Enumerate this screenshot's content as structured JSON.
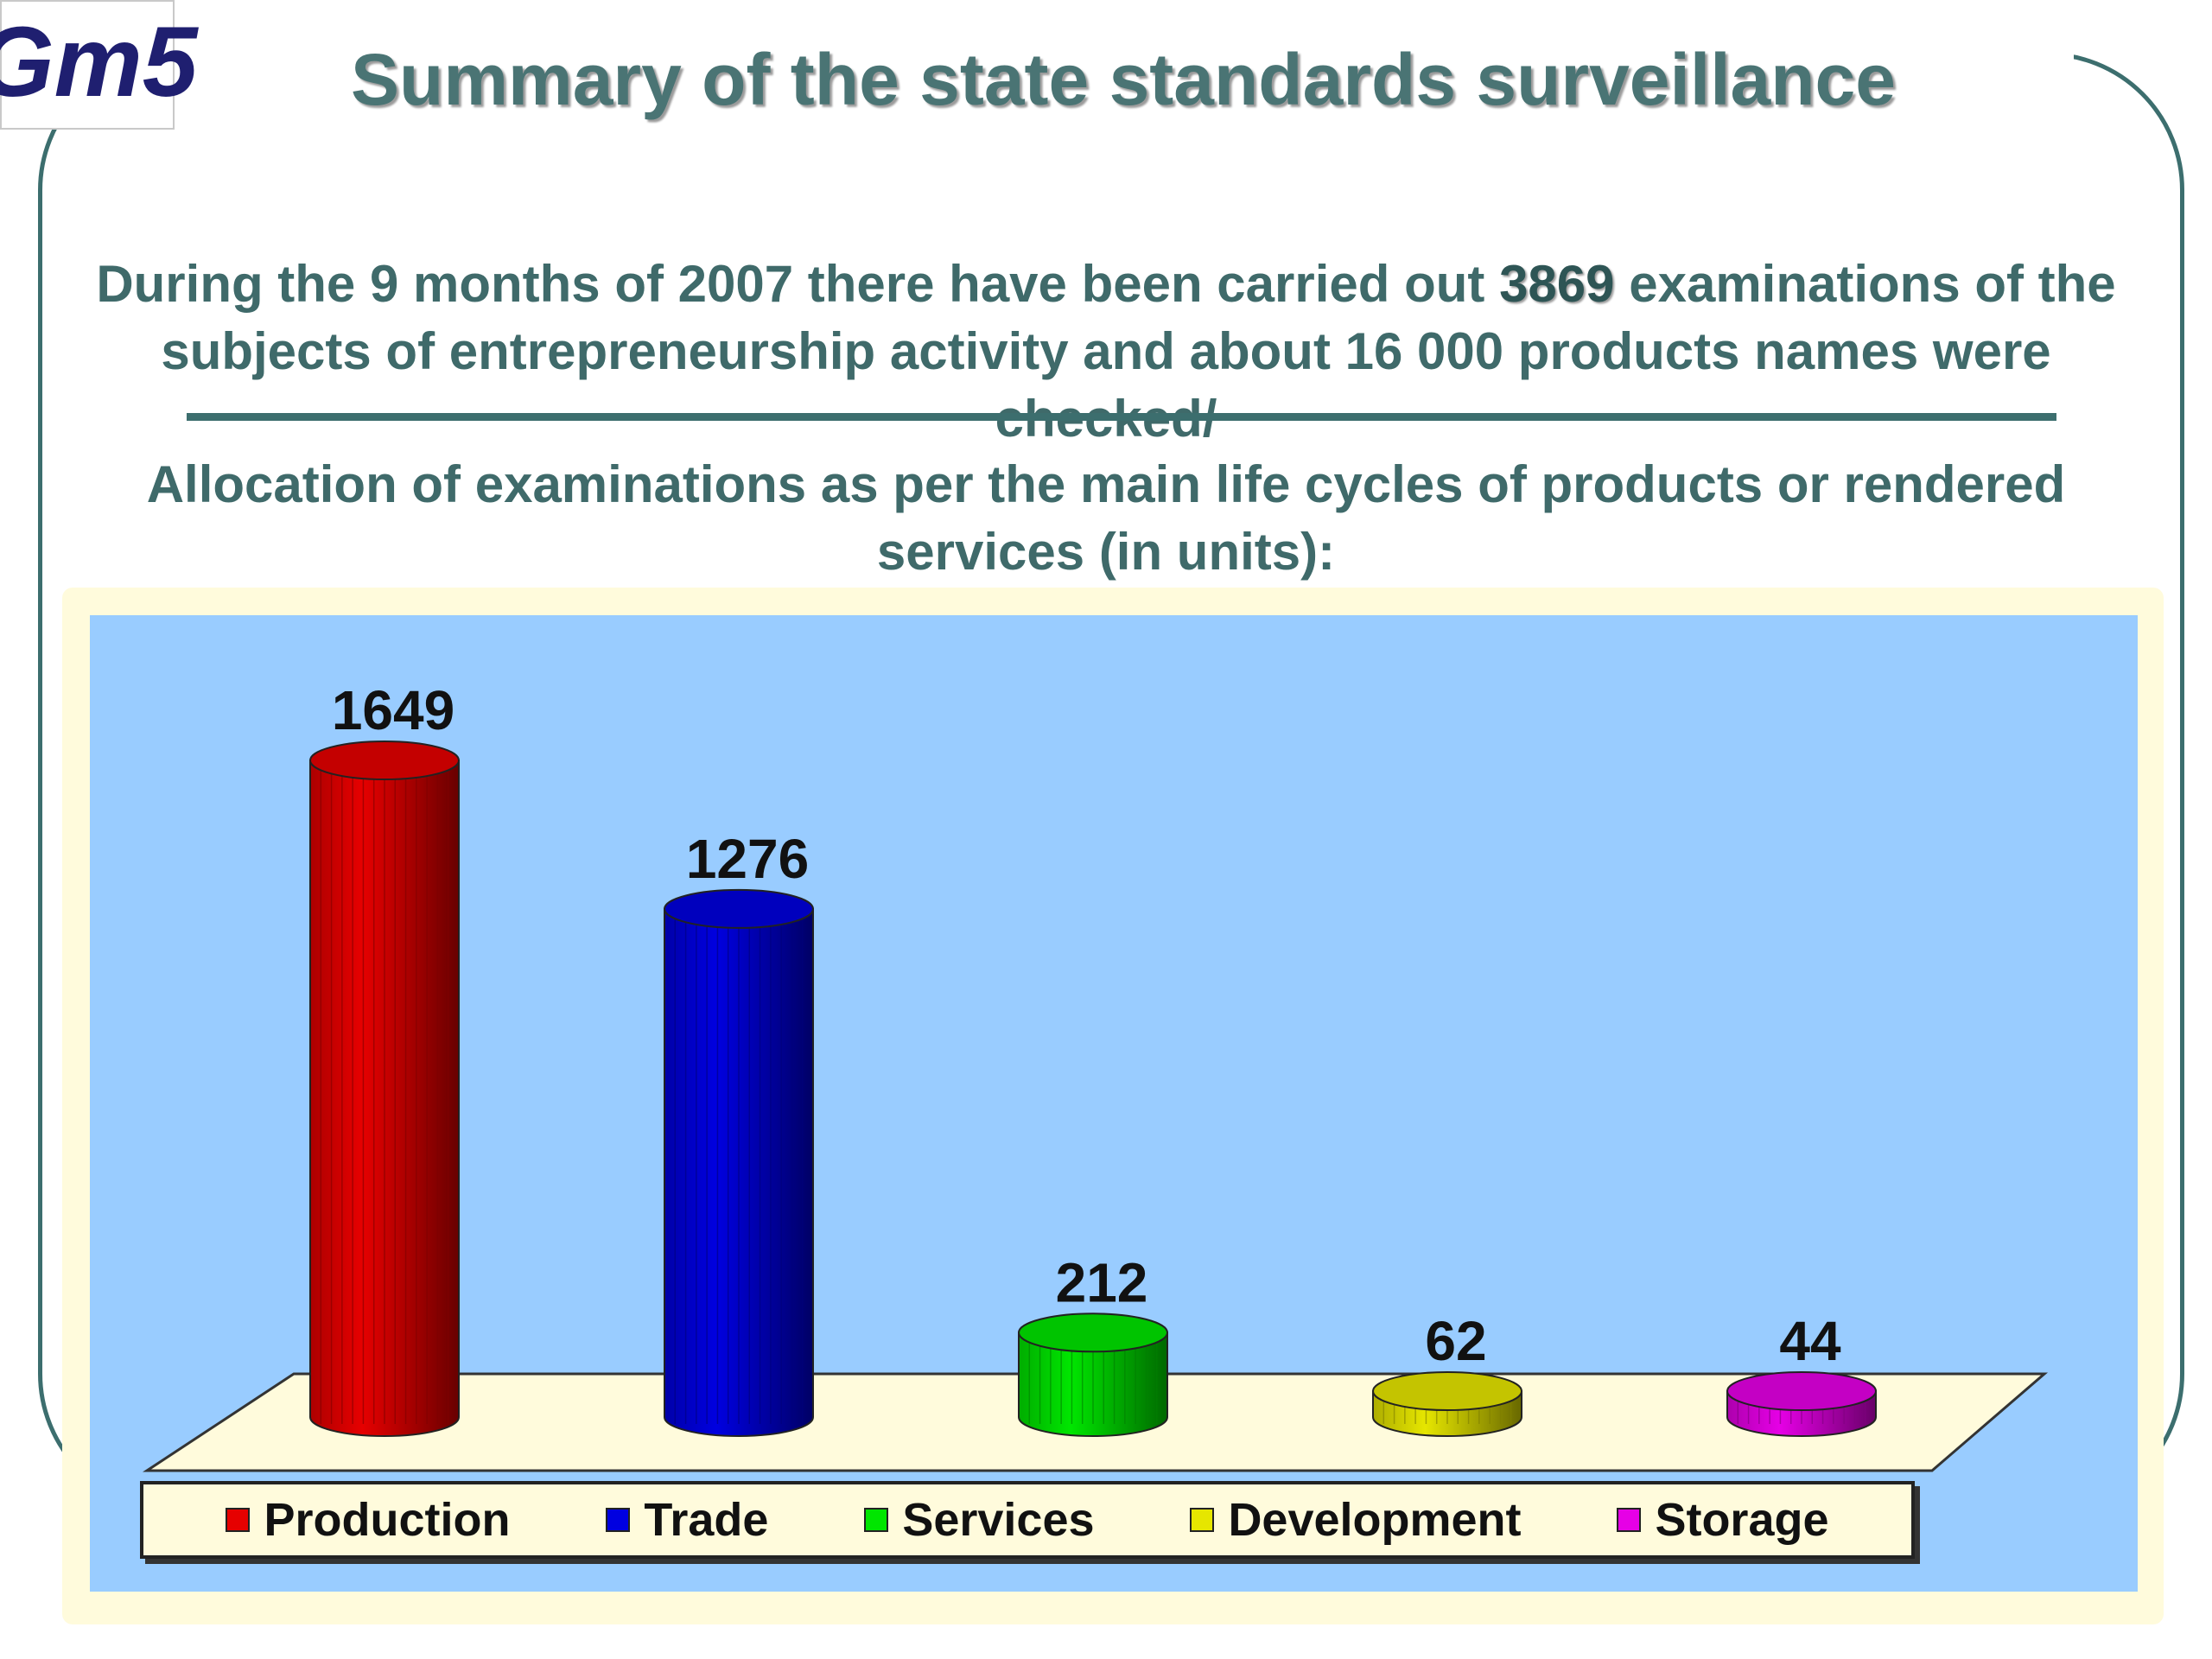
{
  "logo": {
    "text": "Gm5",
    "color": "#1f1f70"
  },
  "title": "Summary of the state standards surveillance",
  "paragraph1": {
    "before": "During the 9 months of 2007 there have been carried out ",
    "highlight": "3869",
    "after": " examinations of the subjects of entrepreneurship activity and about 16 000 products names were checked/"
  },
  "paragraph2": "Allocation of examinations as per the main life cycles of products or rendered services   (in units):",
  "chart_data": {
    "type": "bar",
    "style": "3d-cylinder",
    "categories": [
      "Production",
      "Trade",
      "Services",
      "Development",
      "Storage"
    ],
    "values": [
      1649,
      1276,
      212,
      62,
      44
    ],
    "data_labels": [
      "1649",
      "1276",
      "212",
      "62",
      "44"
    ],
    "colors": [
      "#e60000",
      "#0000e0",
      "#00e600",
      "#e6e600",
      "#e600e6"
    ],
    "ylim": [
      0,
      1649
    ],
    "legend_position": "bottom",
    "grid": false
  }
}
